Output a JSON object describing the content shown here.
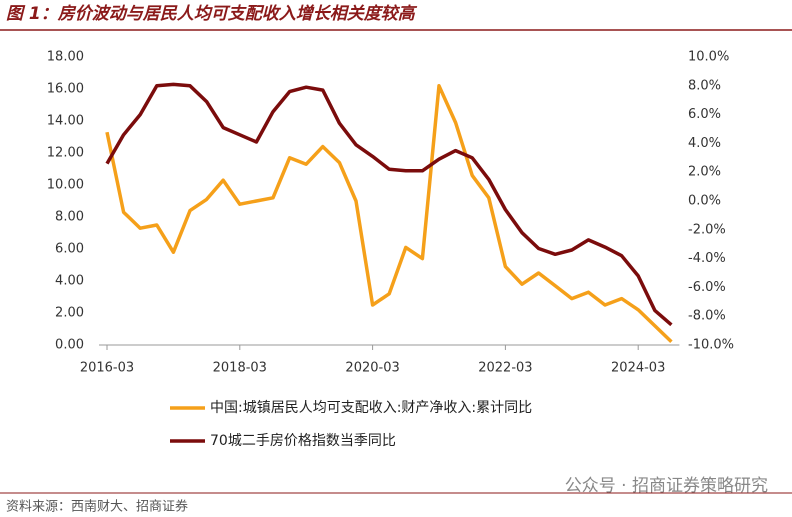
{
  "chart_data": {
    "type": "line",
    "title": "图 1：房价波动与居民人均可支配收入增长相关度较高",
    "source": "资料来源：西南财大、招商证券",
    "watermark": "公众号 · 招商证券策略研究",
    "categories": [
      "2016-03",
      null,
      null,
      null,
      null,
      null,
      null,
      null,
      "2018-03",
      null,
      null,
      null,
      null,
      null,
      null,
      null,
      "2020-03",
      null,
      null,
      null,
      null,
      null,
      null,
      null,
      "2022-03",
      null,
      null,
      null,
      null,
      null,
      null,
      null,
      "2024-03",
      null,
      null
    ],
    "series": [
      {
        "name": "中国:城镇居民人均可支配收入:财产净收入:累计同比",
        "color": "#f5a01a",
        "axis": "y",
        "values": [
          13.3,
          8.3,
          7.3,
          7.5,
          5.8,
          8.4,
          9.1,
          10.3,
          8.8,
          9.0,
          9.2,
          11.7,
          11.3,
          12.4,
          11.4,
          9.0,
          2.5,
          3.2,
          6.1,
          5.4,
          16.2,
          13.9,
          10.6,
          9.2,
          4.9,
          3.8,
          4.5,
          3.7,
          2.9,
          3.3,
          2.5,
          2.9,
          2.2,
          1.2,
          0.2
        ]
      },
      {
        "name": "70城二手房价格指数当季同比",
        "color": "#7b0c0c",
        "axis": "y2",
        "values": [
          2.6,
          4.6,
          6.0,
          8.0,
          8.1,
          8.0,
          6.9,
          5.1,
          4.6,
          4.1,
          6.2,
          7.6,
          7.9,
          7.7,
          5.4,
          3.9,
          3.1,
          2.2,
          2.1,
          2.1,
          2.9,
          3.5,
          3.0,
          1.5,
          -0.6,
          -2.2,
          -3.3,
          -3.7,
          -3.4,
          -2.7,
          -3.2,
          -3.8,
          -5.2,
          -7.6,
          -8.6
        ]
      }
    ],
    "ylim": [
      0,
      18
    ],
    "yticks": [
      {
        "value": 0,
        "label": "0.00"
      },
      {
        "value": 2,
        "label": "2.00"
      },
      {
        "value": 4,
        "label": "4.00"
      },
      {
        "value": 6,
        "label": "6.00"
      },
      {
        "value": 8,
        "label": "8.00"
      },
      {
        "value": 10,
        "label": "10.00"
      },
      {
        "value": 12,
        "label": "12.00"
      },
      {
        "value": 14,
        "label": "14.00"
      },
      {
        "value": 16,
        "label": "16.00"
      },
      {
        "value": 18,
        "label": "18.00"
      }
    ],
    "y2lim": [
      -10,
      10
    ],
    "y2ticks": [
      {
        "value": -10,
        "label": "-10.0%"
      },
      {
        "value": -8,
        "label": "-8.0%"
      },
      {
        "value": -6,
        "label": "-6.0%"
      },
      {
        "value": -4,
        "label": "-4.0%"
      },
      {
        "value": -2,
        "label": "-2.0%"
      },
      {
        "value": 0,
        "label": "0.0%"
      },
      {
        "value": 2,
        "label": "2.0%"
      },
      {
        "value": 4,
        "label": "4.0%"
      },
      {
        "value": 6,
        "label": "6.0%"
      },
      {
        "value": 8,
        "label": "8.0%"
      },
      {
        "value": 10,
        "label": "10.0%"
      }
    ],
    "grid": false
  }
}
